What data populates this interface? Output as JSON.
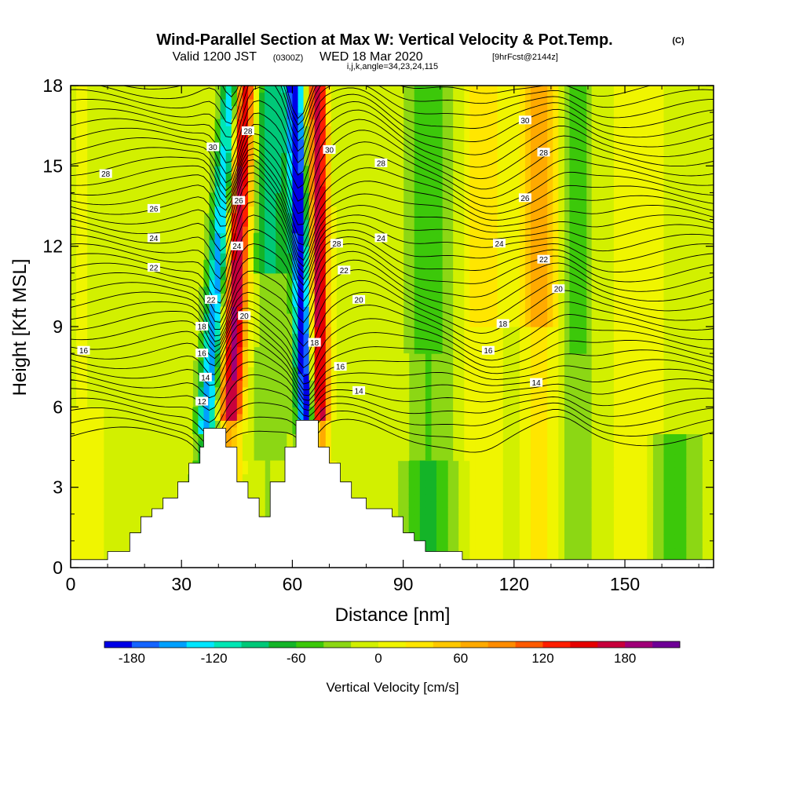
{
  "header": {
    "title": "Wind-Parallel Section at Max W: Vertical Velocity & Pot.Temp.",
    "title_tag": "(C)",
    "valid_prefix": "Valid 1200 JST",
    "valid_utc": "(0300Z)",
    "valid_date": "WED 18 Mar 2020",
    "forecast_tag": "[9hrFcst@2144z]",
    "ijk_line": "i,j,k,angle=34,23,24,115"
  },
  "chart_data": {
    "type": "heatmap",
    "xlabel": "Distance [nm]",
    "ylabel": "Height [Kft MSL]",
    "xlim": [
      0,
      174
    ],
    "ylim": [
      0,
      18
    ],
    "x_ticks": [
      "0",
      "30",
      "60",
      "90",
      "120",
      "150"
    ],
    "x_tick_values": [
      0,
      30,
      60,
      90,
      120,
      150
    ],
    "y_ticks": [
      "0",
      "3",
      "6",
      "9",
      "12",
      "15",
      "18"
    ],
    "y_tick_values": [
      0,
      3,
      6,
      9,
      12,
      15,
      18
    ],
    "colorbar": {
      "label": "Vertical Velocity [cm/s]",
      "tick_labels": [
        "-180",
        "-120",
        "-60",
        "0",
        "60",
        "120",
        "180"
      ],
      "tick_values": [
        -180,
        -120,
        -60,
        0,
        60,
        120,
        180
      ],
      "min": -200,
      "max": 220,
      "colors": [
        "#0000e6",
        "#1464ff",
        "#00a0ff",
        "#00e6ff",
        "#00e6b4",
        "#00c878",
        "#14b428",
        "#3cc80a",
        "#8cd714",
        "#d2f000",
        "#f0f500",
        "#ffe600",
        "#ffc800",
        "#ffaa00",
        "#ff8c00",
        "#ff5a00",
        "#ff1e00",
        "#e60000",
        "#c8003c",
        "#a00078",
        "#6e0096"
      ]
    },
    "terrain_profile": [
      [
        0,
        0.3
      ],
      [
        10,
        0.3
      ],
      [
        10,
        0.6
      ],
      [
        16,
        0.6
      ],
      [
        16,
        1.3
      ],
      [
        19,
        1.3
      ],
      [
        19,
        1.9
      ],
      [
        22,
        1.9
      ],
      [
        22,
        2.2
      ],
      [
        25,
        2.2
      ],
      [
        25,
        2.6
      ],
      [
        29,
        2.6
      ],
      [
        29,
        3.2
      ],
      [
        32,
        3.2
      ],
      [
        32,
        3.9
      ],
      [
        35,
        3.9
      ],
      [
        35,
        4.5
      ],
      [
        36,
        4.5
      ],
      [
        36,
        5.2
      ],
      [
        42,
        5.2
      ],
      [
        42,
        4.5
      ],
      [
        45,
        4.5
      ],
      [
        45,
        3.2
      ],
      [
        48,
        3.2
      ],
      [
        48,
        2.6
      ],
      [
        51,
        2.6
      ],
      [
        51,
        1.9
      ],
      [
        54,
        1.9
      ],
      [
        54,
        3.2
      ],
      [
        58,
        3.2
      ],
      [
        58,
        4.5
      ],
      [
        61,
        4.5
      ],
      [
        61,
        5.5
      ],
      [
        67,
        5.5
      ],
      [
        67,
        4.5
      ],
      [
        70,
        4.5
      ],
      [
        70,
        3.9
      ],
      [
        73,
        3.9
      ],
      [
        73,
        3.2
      ],
      [
        76,
        3.2
      ],
      [
        76,
        2.6
      ],
      [
        80,
        2.6
      ],
      [
        80,
        2.2
      ],
      [
        87,
        2.2
      ],
      [
        87,
        1.9
      ],
      [
        90,
        1.9
      ],
      [
        90,
        1.3
      ],
      [
        93,
        1.3
      ],
      [
        93,
        1.0
      ],
      [
        96,
        1.0
      ],
      [
        96,
        0.6
      ],
      [
        106,
        0.6
      ],
      [
        106,
        0.3
      ],
      [
        174,
        0.3
      ]
    ],
    "theta_contour_labels": [
      {
        "text": "28",
        "x": 9.5,
        "y": 14.7
      },
      {
        "text": "26",
        "x": 22.5,
        "y": 13.4
      },
      {
        "text": "24",
        "x": 22.5,
        "y": 12.3
      },
      {
        "text": "22",
        "x": 22.5,
        "y": 11.2
      },
      {
        "text": "16",
        "x": 3.5,
        "y": 8.1
      },
      {
        "text": "30",
        "x": 38.5,
        "y": 15.7
      },
      {
        "text": "28",
        "x": 48,
        "y": 16.3
      },
      {
        "text": "26",
        "x": 45.5,
        "y": 13.7
      },
      {
        "text": "24",
        "x": 45,
        "y": 12
      },
      {
        "text": "22",
        "x": 38,
        "y": 10
      },
      {
        "text": "20",
        "x": 47,
        "y": 9.4
      },
      {
        "text": "18",
        "x": 35.5,
        "y": 9
      },
      {
        "text": "16",
        "x": 35.5,
        "y": 8
      },
      {
        "text": "14",
        "x": 36.5,
        "y": 7.1
      },
      {
        "text": "12",
        "x": 35.5,
        "y": 6.2
      },
      {
        "text": "30",
        "x": 70,
        "y": 15.6
      },
      {
        "text": "28",
        "x": 72,
        "y": 12.1
      },
      {
        "text": "22",
        "x": 74,
        "y": 11.1
      },
      {
        "text": "20",
        "x": 78,
        "y": 10
      },
      {
        "text": "18",
        "x": 66,
        "y": 8.4
      },
      {
        "text": "16",
        "x": 73,
        "y": 7.5
      },
      {
        "text": "14",
        "x": 78,
        "y": 6.6
      },
      {
        "text": "28",
        "x": 84,
        "y": 15.1
      },
      {
        "text": "24",
        "x": 84,
        "y": 12.3
      },
      {
        "text": "30",
        "x": 123,
        "y": 16.7
      },
      {
        "text": "28",
        "x": 128,
        "y": 15.5
      },
      {
        "text": "26",
        "x": 123,
        "y": 13.8
      },
      {
        "text": "24",
        "x": 116,
        "y": 12.1
      },
      {
        "text": "22",
        "x": 128,
        "y": 11.5
      },
      {
        "text": "20",
        "x": 132,
        "y": 10.4
      },
      {
        "text": "18",
        "x": 117,
        "y": 9.1
      },
      {
        "text": "16",
        "x": 113,
        "y": 8.1
      },
      {
        "text": "14",
        "x": 126,
        "y": 6.9
      }
    ]
  }
}
